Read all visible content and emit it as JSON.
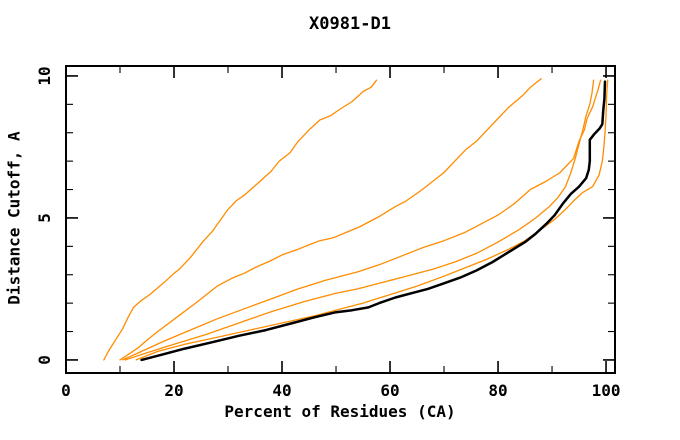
{
  "title": "X0981-D1",
  "chart_data": {
    "type": "line",
    "title": "X0981-D1",
    "xlabel": "Percent of Residues (CA)",
    "ylabel": "Distance Cutoff, A",
    "xlim": [
      0,
      101.66
    ],
    "ylim": [
      -0.46,
      10.35
    ],
    "x_ticks_major": [
      0,
      20,
      40,
      60,
      80,
      100
    ],
    "x_ticks_minor": [
      10,
      30,
      50,
      70,
      90
    ],
    "y_ticks_major": [
      0,
      5,
      10
    ],
    "y_ticks_minor": [
      1,
      2,
      3,
      4,
      6,
      7,
      8,
      9
    ],
    "grid": false,
    "legend": "none",
    "colors": {
      "model": "#ff8c00",
      "best": "#000000"
    },
    "series": [
      {
        "name": "model-curve-1",
        "color": "#ff8c00",
        "width": 1.3,
        "points": [
          [
            7,
            0
          ],
          [
            8,
            0.35
          ],
          [
            9.5,
            0.8
          ],
          [
            10.5,
            1.1
          ],
          [
            11.5,
            1.5
          ],
          [
            12.5,
            1.85
          ],
          [
            14,
            2.1
          ],
          [
            15.5,
            2.3
          ],
          [
            18,
            2.7
          ],
          [
            20,
            3.05
          ],
          [
            21,
            3.2
          ],
          [
            23,
            3.6
          ],
          [
            25.5,
            4.2
          ],
          [
            27,
            4.5
          ],
          [
            28.5,
            4.9
          ],
          [
            30,
            5.3
          ],
          [
            31.5,
            5.6
          ],
          [
            33,
            5.8
          ],
          [
            36,
            6.3
          ],
          [
            38,
            6.65
          ],
          [
            39.5,
            7.0
          ],
          [
            41.5,
            7.3
          ],
          [
            43,
            7.7
          ],
          [
            45,
            8.1
          ],
          [
            47,
            8.45
          ],
          [
            49,
            8.6
          ],
          [
            50.5,
            8.8
          ],
          [
            53,
            9.1
          ],
          [
            55,
            9.45
          ],
          [
            56.5,
            9.6
          ],
          [
            57.5,
            9.85
          ]
        ]
      },
      {
        "name": "model-curve-2",
        "color": "#ff8c00",
        "width": 1.3,
        "points": [
          [
            10,
            0
          ],
          [
            12,
            0.25
          ],
          [
            13.5,
            0.45
          ],
          [
            15,
            0.7
          ],
          [
            17,
            1.0
          ],
          [
            20.5,
            1.5
          ],
          [
            24,
            2.0
          ],
          [
            26,
            2.3
          ],
          [
            28,
            2.6
          ],
          [
            31,
            2.9
          ],
          [
            33,
            3.05
          ],
          [
            35,
            3.25
          ],
          [
            38,
            3.5
          ],
          [
            40,
            3.7
          ],
          [
            43,
            3.9
          ],
          [
            45,
            4.05
          ],
          [
            47,
            4.2
          ],
          [
            49.5,
            4.3
          ],
          [
            52,
            4.5
          ],
          [
            54.5,
            4.7
          ],
          [
            58,
            5.05
          ],
          [
            61,
            5.4
          ],
          [
            63,
            5.6
          ],
          [
            66,
            6.0
          ],
          [
            68,
            6.3
          ],
          [
            70,
            6.6
          ],
          [
            72.5,
            7.1
          ],
          [
            74,
            7.4
          ],
          [
            76,
            7.7
          ],
          [
            78.5,
            8.2
          ],
          [
            80,
            8.5
          ],
          [
            82,
            8.9
          ],
          [
            84.5,
            9.3
          ],
          [
            86,
            9.6
          ],
          [
            88,
            9.9
          ]
        ]
      },
      {
        "name": "model-curve-3",
        "color": "#ff8c00",
        "width": 1.3,
        "points": [
          [
            10.5,
            0
          ],
          [
            14,
            0.3
          ],
          [
            18,
            0.65
          ],
          [
            23,
            1.05
          ],
          [
            28,
            1.45
          ],
          [
            33,
            1.8
          ],
          [
            38,
            2.15
          ],
          [
            43,
            2.5
          ],
          [
            48,
            2.8
          ],
          [
            54,
            3.1
          ],
          [
            58,
            3.35
          ],
          [
            62,
            3.65
          ],
          [
            66,
            3.95
          ],
          [
            70,
            4.2
          ],
          [
            74,
            4.5
          ],
          [
            77,
            4.8
          ],
          [
            80,
            5.1
          ],
          [
            83,
            5.5
          ],
          [
            86,
            6.0
          ],
          [
            89,
            6.3
          ],
          [
            91.5,
            6.6
          ],
          [
            93,
            6.9
          ],
          [
            94,
            7.1
          ],
          [
            95,
            7.7
          ],
          [
            96,
            8.1
          ],
          [
            96.5,
            8.5
          ],
          [
            97.5,
            8.9
          ],
          [
            98,
            9.2
          ],
          [
            98.5,
            9.5
          ],
          [
            99,
            9.85
          ]
        ]
      },
      {
        "name": "model-curve-4",
        "color": "#ff8c00",
        "width": 1.3,
        "points": [
          [
            11,
            0
          ],
          [
            15,
            0.25
          ],
          [
            20,
            0.55
          ],
          [
            26,
            0.9
          ],
          [
            32,
            1.3
          ],
          [
            38,
            1.7
          ],
          [
            44,
            2.05
          ],
          [
            50,
            2.35
          ],
          [
            54,
            2.5
          ],
          [
            58,
            2.7
          ],
          [
            63,
            2.95
          ],
          [
            68,
            3.2
          ],
          [
            72,
            3.45
          ],
          [
            76,
            3.75
          ],
          [
            80,
            4.15
          ],
          [
            84,
            4.6
          ],
          [
            87,
            5.0
          ],
          [
            89.5,
            5.4
          ],
          [
            91,
            5.7
          ],
          [
            92.5,
            6.1
          ],
          [
            93.5,
            6.6
          ],
          [
            94.3,
            7.1
          ],
          [
            95,
            7.6
          ],
          [
            95.7,
            8.1
          ],
          [
            96.3,
            8.6
          ],
          [
            97,
            9.0
          ],
          [
            97.4,
            9.4
          ],
          [
            97.7,
            9.85
          ]
        ]
      },
      {
        "name": "model-curve-5",
        "color": "#ff8c00",
        "width": 1.3,
        "points": [
          [
            13,
            0
          ],
          [
            17,
            0.3
          ],
          [
            22,
            0.55
          ],
          [
            28,
            0.8
          ],
          [
            34,
            1.05
          ],
          [
            40,
            1.3
          ],
          [
            46,
            1.55
          ],
          [
            51,
            1.8
          ],
          [
            55,
            2.0
          ],
          [
            60,
            2.3
          ],
          [
            65,
            2.6
          ],
          [
            70,
            2.95
          ],
          [
            74,
            3.25
          ],
          [
            78,
            3.55
          ],
          [
            82,
            3.9
          ],
          [
            85,
            4.2
          ],
          [
            88,
            4.6
          ],
          [
            90.5,
            4.95
          ],
          [
            92.5,
            5.3
          ],
          [
            94,
            5.6
          ],
          [
            95.7,
            5.9
          ],
          [
            97.5,
            6.1
          ],
          [
            98.7,
            6.5
          ],
          [
            99.3,
            7.0
          ],
          [
            99.6,
            7.5
          ],
          [
            99.8,
            8.0
          ],
          [
            100,
            8.6
          ],
          [
            100.1,
            9.3
          ],
          [
            100.3,
            9.85
          ]
        ]
      },
      {
        "name": "best-model-curve",
        "color": "#000000",
        "width": 2.5,
        "points": [
          [
            14,
            0
          ],
          [
            18,
            0.2
          ],
          [
            22,
            0.4
          ],
          [
            27,
            0.62
          ],
          [
            32,
            0.85
          ],
          [
            37,
            1.05
          ],
          [
            42,
            1.3
          ],
          [
            46,
            1.5
          ],
          [
            50,
            1.68
          ],
          [
            53,
            1.75
          ],
          [
            56,
            1.85
          ],
          [
            58,
            2.0
          ],
          [
            61,
            2.2
          ],
          [
            64,
            2.35
          ],
          [
            67,
            2.5
          ],
          [
            70,
            2.7
          ],
          [
            73,
            2.9
          ],
          [
            76,
            3.15
          ],
          [
            79,
            3.45
          ],
          [
            82,
            3.8
          ],
          [
            85,
            4.15
          ],
          [
            87,
            4.45
          ],
          [
            89,
            4.8
          ],
          [
            90.5,
            5.1
          ],
          [
            92,
            5.5
          ],
          [
            93.5,
            5.85
          ],
          [
            95,
            6.1
          ],
          [
            96.3,
            6.4
          ],
          [
            96.8,
            6.7
          ],
          [
            97,
            7.0
          ],
          [
            97,
            7.75
          ],
          [
            97.8,
            7.95
          ],
          [
            98.8,
            8.15
          ],
          [
            99.3,
            8.3
          ],
          [
            99.5,
            8.8
          ],
          [
            99.7,
            9.2
          ],
          [
            99.8,
            9.8
          ]
        ]
      }
    ]
  }
}
